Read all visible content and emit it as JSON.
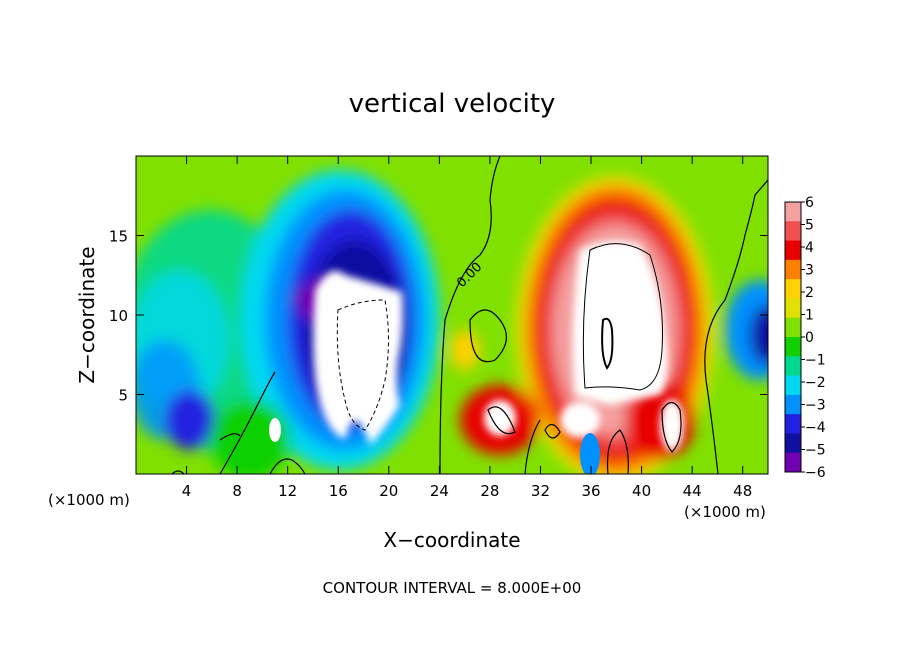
{
  "chart_data": {
    "type": "heatmap",
    "title": "vertical velocity",
    "xlabel": "X−coordinate",
    "ylabel": "Z−coordinate",
    "x_unit_left": "(×1000 m)",
    "x_unit_right": "(×1000 m)",
    "footer": "CONTOUR INTERVAL = 8.000E+00",
    "contour_label": "0.00",
    "xlim": [
      0,
      50
    ],
    "ylim": [
      0,
      20
    ],
    "x_ticks": [
      4,
      8,
      12,
      16,
      20,
      24,
      28,
      32,
      36,
      40,
      44,
      48
    ],
    "y_ticks": [
      5,
      10,
      15
    ],
    "colorbar": {
      "ticks": [
        "6",
        "5",
        "4",
        "3",
        "2",
        "1",
        "0",
        "−1",
        "−2",
        "−3",
        "−4",
        "−5",
        "−6"
      ],
      "range": [
        -6,
        6
      ],
      "colors": [
        "#f4a0a0",
        "#f05050",
        "#e80000",
        "#ff8000",
        "#ffd000",
        "#e0e000",
        "#80e000",
        "#10d000",
        "#00d890",
        "#00d8f0",
        "#0090ff",
        "#2020e0",
        "#1010a0",
        "#7000b0"
      ],
      "off_scale_color": "#ffffff"
    },
    "features": [
      {
        "name": "downdraft core (white, < −6)",
        "x_range": [
          14,
          21
        ],
        "z_range": [
          2,
          13
        ]
      },
      {
        "name": "updraft core (white, > 6)",
        "x_range": [
          33,
          43
        ],
        "z_range": [
          3,
          14
        ]
      },
      {
        "name": "updraft tower envelope",
        "x_range": [
          30,
          46
        ],
        "z_range": [
          0,
          17.5
        ]
      }
    ]
  }
}
